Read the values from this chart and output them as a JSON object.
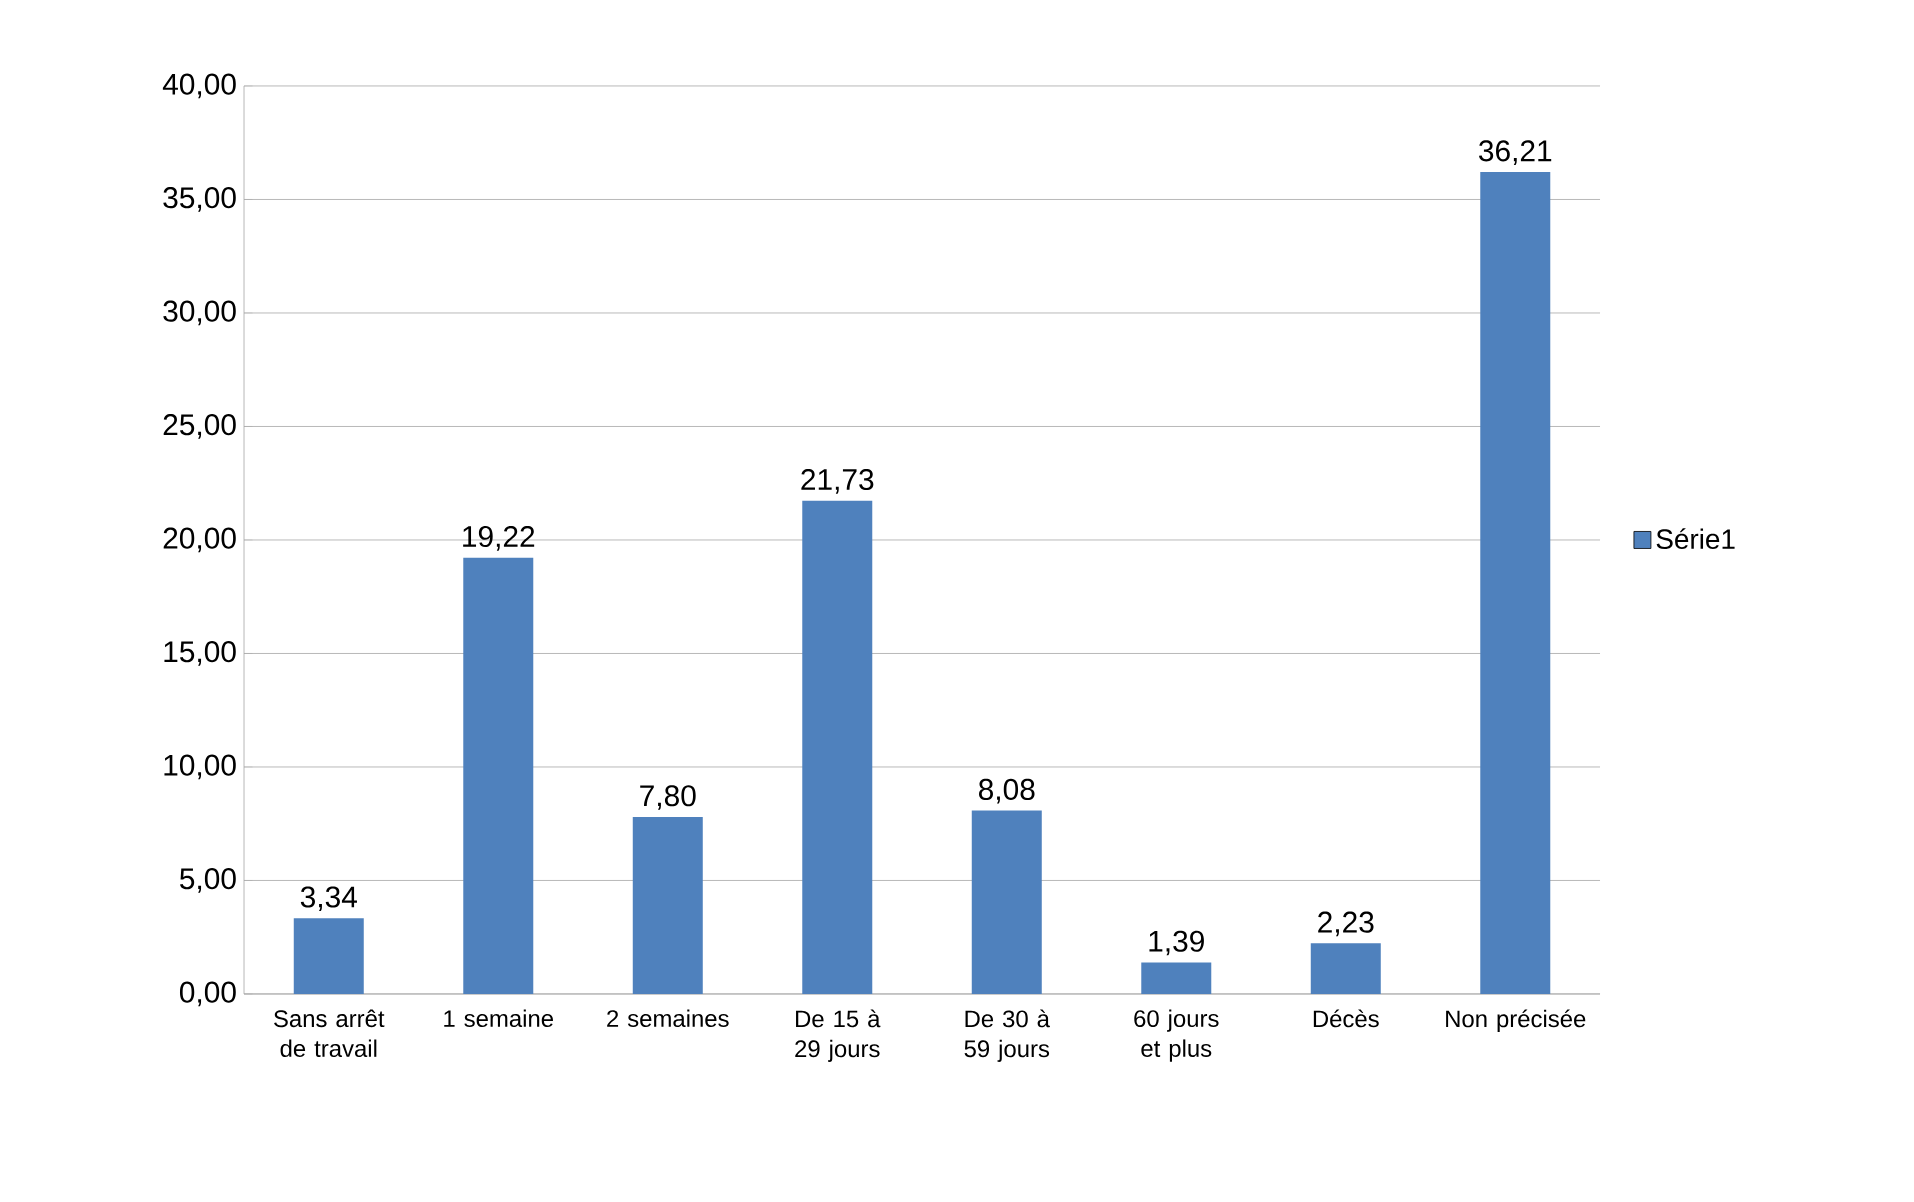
{
  "chart_data": {
    "type": "bar",
    "categories": [
      "Sans arrêt de travail",
      "1 semaine",
      "2 semaines",
      "De 15 à 29 jours",
      "De 30 à 59 jours",
      "60 jours et plus",
      "Décès",
      "Non précisée"
    ],
    "series": [
      {
        "name": "Série1",
        "color": "#4f81bd",
        "values": [
          3.34,
          19.22,
          7.8,
          21.73,
          8.08,
          1.39,
          2.23,
          36.21
        ],
        "value_labels": [
          "3,34",
          "19,22",
          "7,80",
          "21,73",
          "8,08",
          "1,39",
          "2,23",
          "36,21"
        ]
      }
    ],
    "ylim": [
      0,
      40
    ],
    "yticks": [
      {
        "value": 0,
        "label": "0,00"
      },
      {
        "value": 5,
        "label": "5,00"
      },
      {
        "value": 10,
        "label": "10,00"
      },
      {
        "value": 15,
        "label": "15,00"
      },
      {
        "value": 20,
        "label": "20,00"
      },
      {
        "value": 25,
        "label": "25,00"
      },
      {
        "value": 30,
        "label": "30,00"
      },
      {
        "value": 35,
        "label": "35,00"
      },
      {
        "value": 40,
        "label": "40,00"
      }
    ],
    "grid": "y",
    "legend": "right"
  }
}
